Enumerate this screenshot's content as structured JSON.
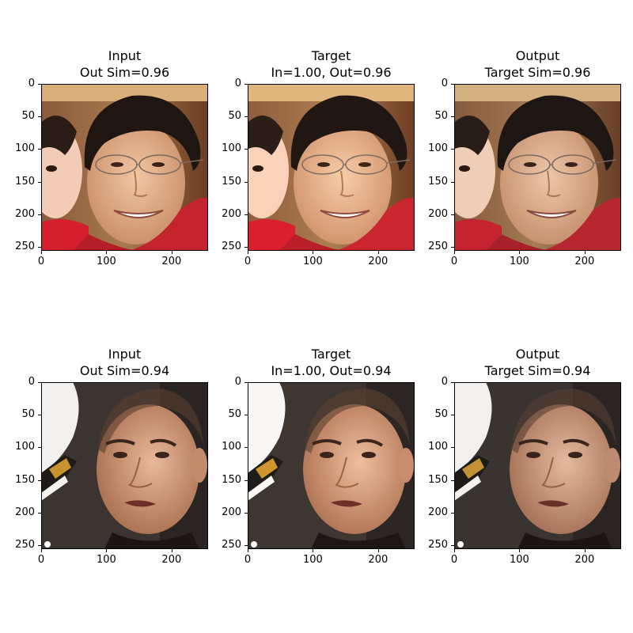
{
  "rows": [
    {
      "panels": [
        {
          "title1": "Input",
          "title2": "Out Sim=0.96",
          "face": "asian_glasses",
          "variant": "input"
        },
        {
          "title1": "Target",
          "title2": "In=1.00, Out=0.96",
          "face": "asian_glasses",
          "variant": "target"
        },
        {
          "title1": "Output",
          "title2": "Target Sim=0.96",
          "face": "asian_glasses",
          "variant": "output"
        }
      ]
    },
    {
      "panels": [
        {
          "title1": "Input",
          "title2": "Out Sim=0.94",
          "face": "shaved_head",
          "variant": "input"
        },
        {
          "title1": "Target",
          "title2": "In=1.00, Out=0.94",
          "face": "shaved_head",
          "variant": "target"
        },
        {
          "title1": "Output",
          "title2": "Target Sim=0.94",
          "face": "shaved_head",
          "variant": "output"
        }
      ]
    }
  ],
  "axis": {
    "yticks": [
      "0",
      "50",
      "100",
      "150",
      "200",
      "250"
    ],
    "xticks": [
      "0",
      "100",
      "200"
    ]
  }
}
